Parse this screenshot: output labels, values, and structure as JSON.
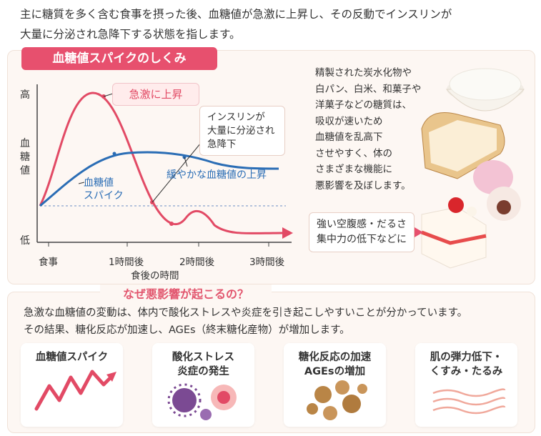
{
  "intro": {
    "line1": "主に糖質を多く含む食事を摂った後、血糖値が急激に上昇し、その反動でインスリンが",
    "line2": "大量に分泌され急降下する状態を指します。"
  },
  "section_title": "血糖値スパイクのしくみ",
  "chart": {
    "y_high": "高",
    "y_label_1": "血",
    "y_label_2": "糖",
    "y_label_3": "値",
    "y_low": "低",
    "x_ticks": [
      "食事",
      "1時間後",
      "2時間後",
      "3時間後"
    ],
    "x_title": "食後の時間",
    "callout_rise": "急激に上昇",
    "callout_insulin_1": "インスリンが",
    "callout_insulin_2": "大量に分泌され",
    "callout_insulin_3": "急降下",
    "spike_label_1": "血糖値",
    "spike_label_2": "スパイク",
    "gentle_label": "緩やかな血糖値の上昇",
    "spike_color": "#e24a65",
    "gentle_color": "#2a6db5"
  },
  "food_text": [
    "精製された炭水化物や",
    "白パン、白米、和菓子や",
    "洋菓子などの糖質は、",
    "吸収が速いため",
    "血糖値を乱高下",
    "させやすく、体の",
    "さまざまな機能に",
    "悪影響を及ぼします。"
  ],
  "effect": {
    "line1": "強い空腹感・だるさ",
    "line2": "集中力の低下などに"
  },
  "why": {
    "title": "なぜ悪影響が起こるの？",
    "line1": "急激な血糖値の変動は、体内で酸化ストレスや炎症を引き起こしやすいことが分かっています。",
    "line2": "その結果、糖化反応が加速し、AGEs（終末糖化産物）が増加します。"
  },
  "steps": [
    {
      "line1": "血糖値スパイク",
      "line2": ""
    },
    {
      "line1": "酸化ストレス",
      "line2": "炎症の発生"
    },
    {
      "line1": "糖化反応の加速",
      "line2": "AGEsの増加"
    },
    {
      "line1": "肌の弾力低下・",
      "line2": "くすみ・たるみ"
    }
  ],
  "colors": {
    "accent": "#e7506e",
    "blue": "#2a6db5",
    "panel_bg": "#fdf7f3"
  }
}
